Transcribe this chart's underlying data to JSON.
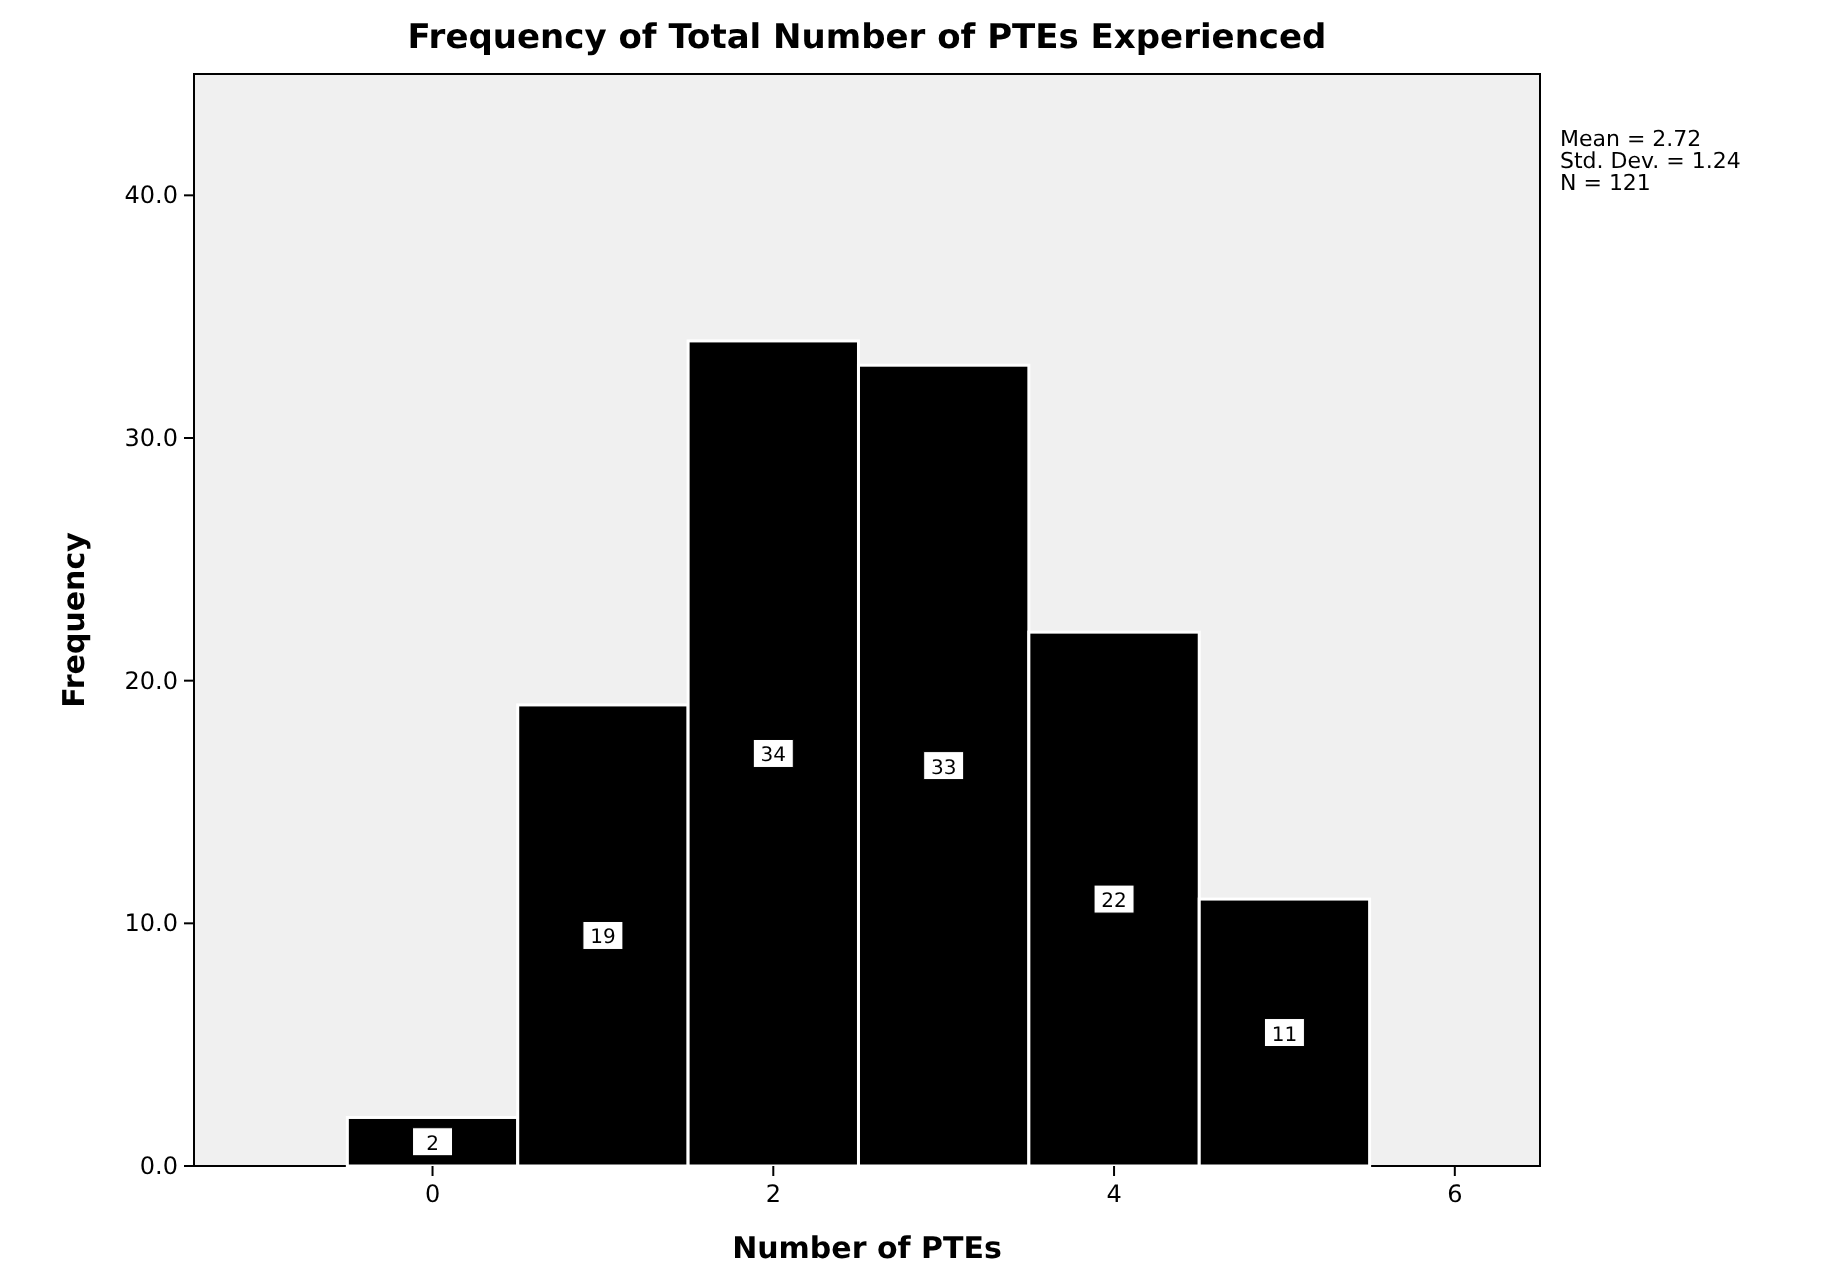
{
  "chart_data": {
    "type": "histogram",
    "title": "Frequency of Total Number of PTEs Experienced",
    "xlabel": "Number of PTEs",
    "ylabel": "Frequency",
    "bins": [
      -0.5,
      0.5,
      1.5,
      2.5,
      3.5,
      4.5,
      5.5
    ],
    "values": [
      2,
      19,
      34,
      33,
      22,
      11
    ],
    "color": "#000000",
    "xlim": [
      -1.4,
      6.5
    ],
    "xticks": [
      0,
      2,
      4,
      6
    ],
    "ylim": [
      0,
      45
    ],
    "yticks": [
      {
        "value": 0,
        "label": "0.0"
      },
      {
        "value": 10,
        "label": "10.0"
      },
      {
        "value": 20,
        "label": "20.0"
      },
      {
        "value": 30,
        "label": "30.0"
      },
      {
        "value": 40,
        "label": "40.0"
      }
    ],
    "data_labels": true,
    "grid": false,
    "annotations": [
      "Mean = 2.72",
      "Std. Dev. = 1.24",
      "N = 121"
    ]
  }
}
